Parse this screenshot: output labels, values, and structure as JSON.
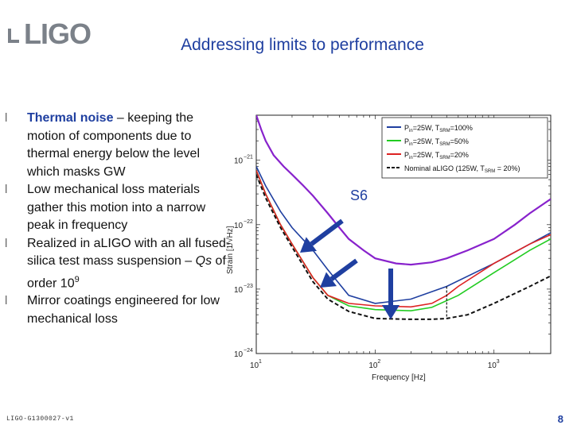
{
  "header": {
    "logo_text": "LIGO",
    "title": "Addressing limits to performance"
  },
  "bullets": [
    {
      "highlight": "Thermal noise",
      "text": " – keeping the motion of components due to thermal energy below the level which masks GW"
    },
    {
      "text": "Low mechanical loss materials gather this motion into a narrow peak in frequency"
    },
    {
      "text_before": "Realized in aLIGO with an all fused-silica test mass suspension – ",
      "italic": "Qs",
      "text_after": " of order 10",
      "sup": "9"
    },
    {
      "text": "Mirror coatings engineered for low mechanical loss"
    }
  ],
  "chart_data": {
    "type": "line",
    "xlabel": "Frequency [Hz]",
    "ylabel": "Strain [1/√Hz]",
    "xscale": "log",
    "yscale": "log",
    "xlim": [
      10,
      3000
    ],
    "ylim": [
      1e-24,
      5e-21
    ],
    "x_ticks": [
      {
        "base": "10",
        "exp": "1"
      },
      {
        "base": "10",
        "exp": "2"
      },
      {
        "base": "10",
        "exp": "3"
      }
    ],
    "y_ticks": [
      {
        "base": "10",
        "exp": "−21"
      },
      {
        "base": "10",
        "exp": "−22"
      },
      {
        "base": "10",
        "exp": "−23"
      },
      {
        "base": "10",
        "exp": "−24"
      }
    ],
    "annotation": "S6",
    "legend_position": "top-right",
    "series": [
      {
        "name_main": "P",
        "name_sub": "in",
        "name_mid": "=25W, T",
        "name_sub2": "SRM",
        "name_end": "=100%",
        "color": "#1f3fa0",
        "x": [
          10,
          12,
          16,
          20,
          30,
          40,
          60,
          100,
          200,
          400,
          1000,
          2000,
          3000
        ],
        "y": [
          8e-22,
          4e-22,
          1.6e-22,
          9e-23,
          4e-23,
          2e-23,
          8e-24,
          6e-24,
          7e-24,
          1.1e-23,
          2.5e-23,
          5e-23,
          7.5e-23
        ]
      },
      {
        "name_main": "P",
        "name_sub": "in",
        "name_mid": "=25W, T",
        "name_sub2": "SRM",
        "name_end": "=50%",
        "color": "#22cc22",
        "x": [
          10,
          12,
          16,
          20,
          30,
          40,
          60,
          100,
          200,
          300,
          500,
          1000,
          2000,
          3000
        ],
        "y": [
          7e-22,
          3e-22,
          1e-22,
          5e-23,
          1.5e-23,
          8e-24,
          5.5e-24,
          4.8e-24,
          4.6e-24,
          5.2e-24,
          8e-24,
          1.8e-23,
          4e-23,
          6e-23
        ]
      },
      {
        "name_main": "P",
        "name_sub": "in",
        "name_mid": "=25W, T",
        "name_sub2": "SRM",
        "name_end": "=20%",
        "color": "#dd2222",
        "x": [
          10,
          12,
          16,
          20,
          30,
          40,
          60,
          100,
          200,
          300,
          400,
          500,
          1000,
          2000,
          3000
        ],
        "y": [
          7e-22,
          3e-22,
          1e-22,
          5e-23,
          1.5e-23,
          8e-24,
          6e-24,
          5.5e-24,
          5.3e-24,
          6e-24,
          8e-24,
          1.1e-23,
          2.5e-23,
          5e-23,
          7e-23
        ]
      },
      {
        "name_main": "Nominal aLIGO (125W, T",
        "name_sub": "SRM",
        "name_end": " = 20%)",
        "color": "#111111",
        "dashed": true,
        "x": [
          10,
          12,
          16,
          20,
          30,
          40,
          60,
          100,
          200,
          300,
          400,
          600,
          1000,
          2000,
          3000
        ],
        "y": [
          6e-22,
          2.6e-22,
          9e-23,
          4.5e-23,
          1.3e-23,
          7e-24,
          4.5e-24,
          3.5e-24,
          3.4e-24,
          3.4e-24,
          3.5e-24,
          4e-24,
          6e-24,
          1.1e-23,
          1.6e-23
        ]
      },
      {
        "name": "S6",
        "color": "#8822cc",
        "purple": true,
        "x": [
          10,
          11,
          12,
          14,
          17,
          20,
          25,
          30,
          40,
          50,
          60,
          80,
          100,
          150,
          200,
          300,
          400,
          600,
          1000,
          1500,
          2000,
          3000
        ],
        "y": [
          5e-21,
          3e-21,
          2e-21,
          1.2e-21,
          8e-22,
          6e-22,
          4e-22,
          2.8e-22,
          1.5e-22,
          9e-23,
          6e-23,
          4e-23,
          3e-23,
          2.5e-23,
          2.4e-23,
          2.6e-23,
          3e-23,
          4e-23,
          6e-23,
          1e-22,
          1.5e-22,
          2.5e-22
        ]
      }
    ]
  },
  "footer": {
    "doc_id": "LIGO-G1300027-v1",
    "page_number": "8"
  }
}
